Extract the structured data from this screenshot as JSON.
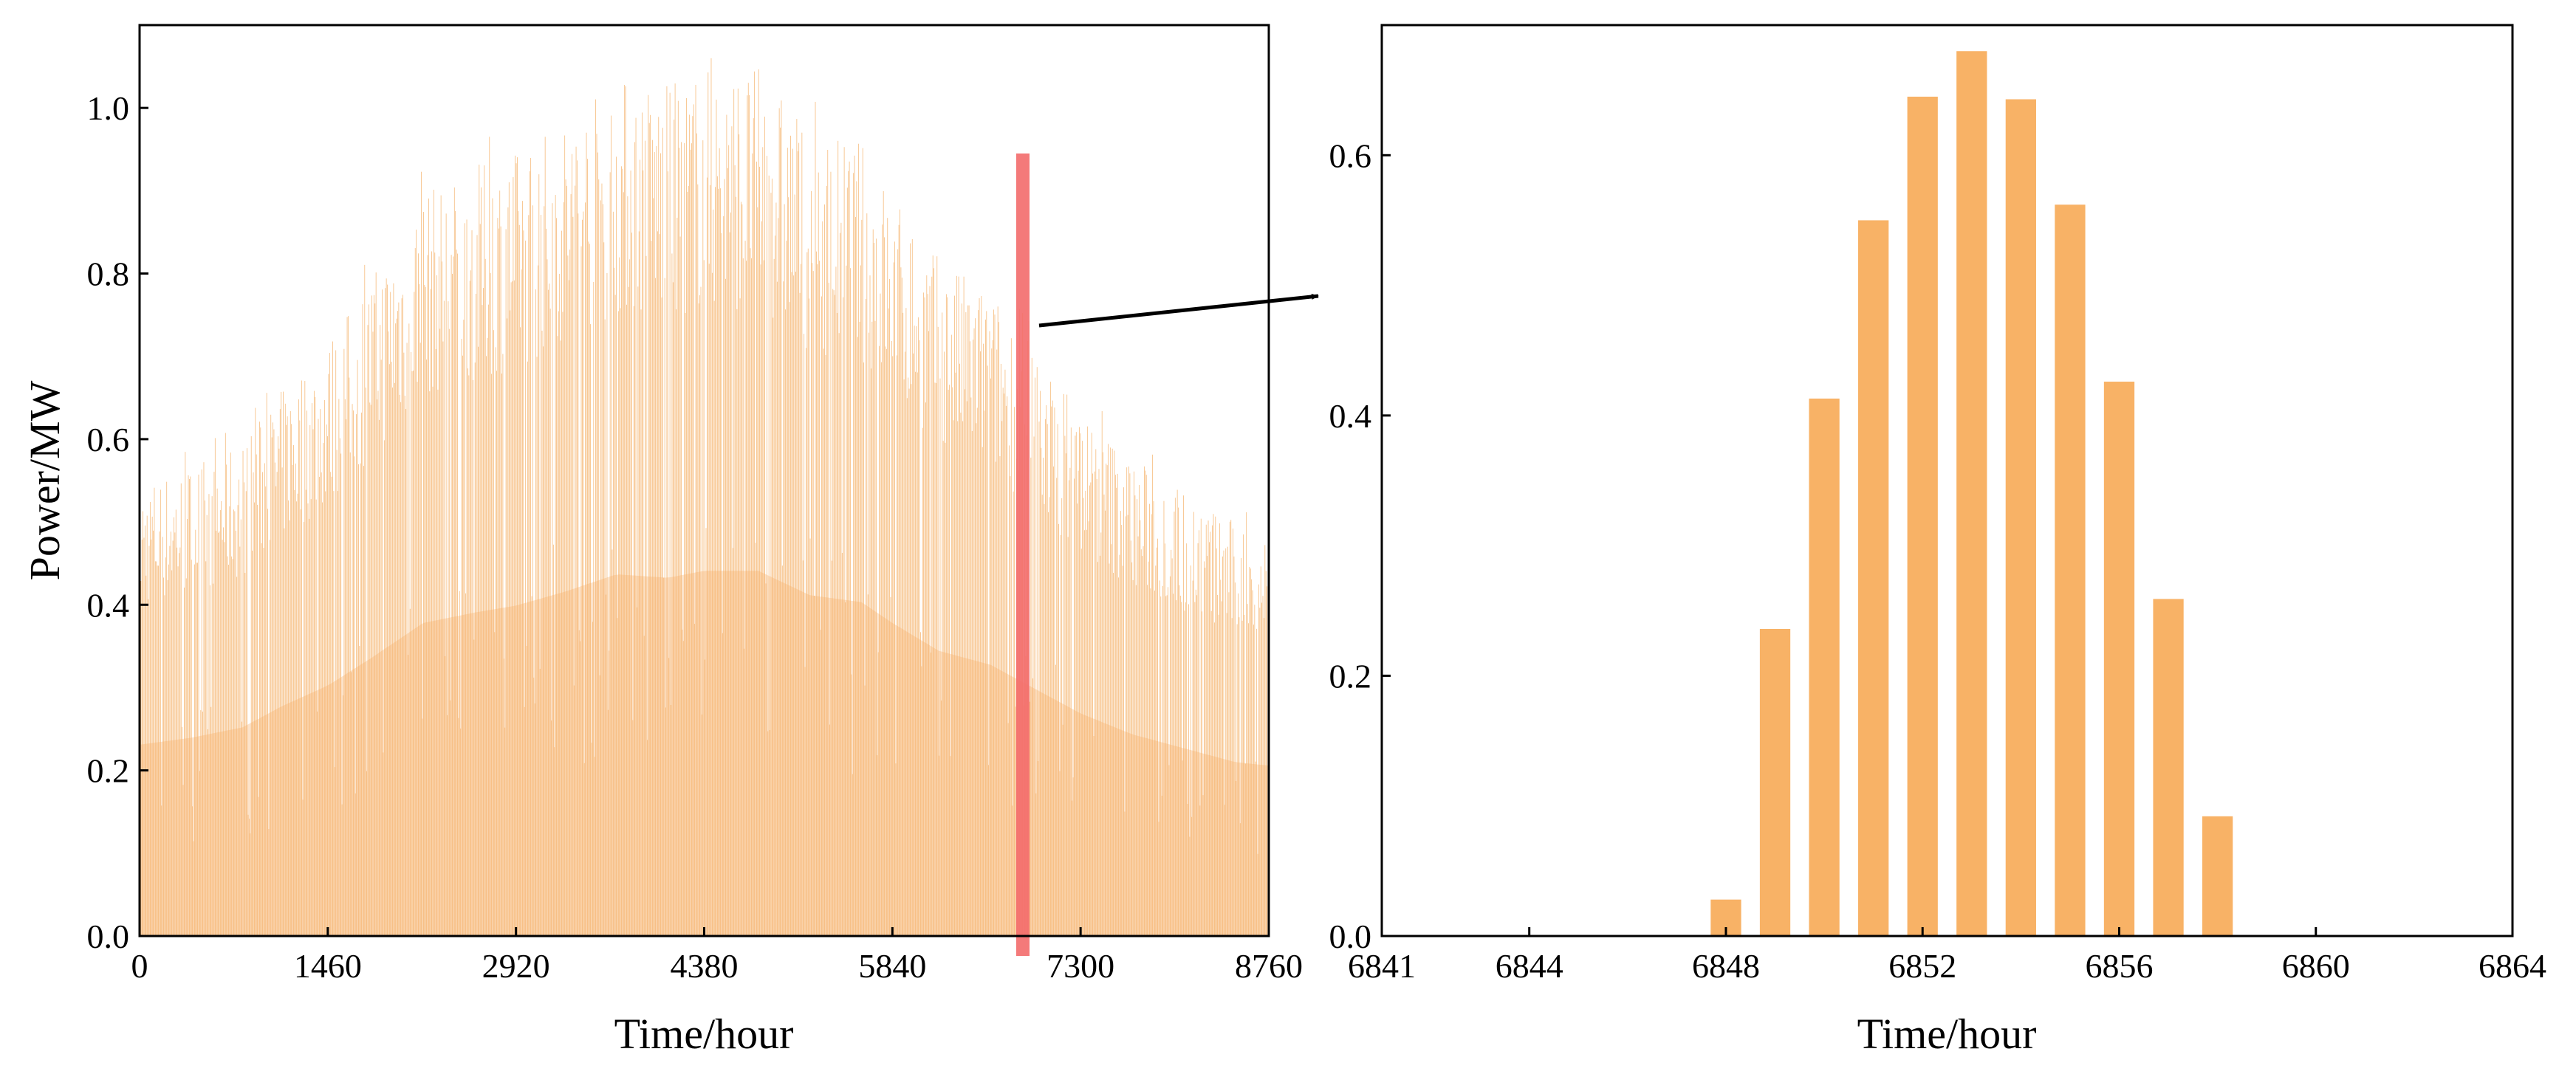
{
  "chart_data": [
    {
      "type": "bar",
      "xlabel": "Time/hour",
      "ylabel": "Power/MW",
      "xlim": [
        0,
        8760
      ],
      "ylim": [
        0,
        1.1
      ],
      "xticks": [
        0,
        1460,
        2920,
        4380,
        5840,
        7300,
        8760
      ],
      "yticks": [
        "0.0",
        "0.2",
        "0.4",
        "0.6",
        "0.8",
        "1.0"
      ],
      "grid": false,
      "bar_color": "#f5b066",
      "envelope": {
        "x": [
          0,
          400,
          800,
          1100,
          1460,
          1800,
          2200,
          2600,
          2920,
          3300,
          3700,
          4100,
          4380,
          4800,
          5200,
          5600,
          5840,
          6200,
          6600,
          6850,
          7300,
          7700,
          8100,
          8500,
          8760
        ],
        "peak": [
          0.55,
          0.57,
          0.6,
          0.66,
          0.72,
          0.8,
          0.9,
          0.93,
          0.95,
          0.99,
          1.04,
          1.03,
          1.05,
          1.05,
          0.98,
          0.96,
          0.9,
          0.82,
          0.78,
          0.73,
          0.64,
          0.58,
          0.54,
          0.5,
          0.49
        ]
      },
      "highlight": {
        "x": 6852,
        "ymin": 0,
        "ymax": 0.945,
        "color": "#f36b6b"
      }
    },
    {
      "type": "bar",
      "xlabel": "Time/hour",
      "ylabel": "",
      "xlim": [
        6841,
        6864
      ],
      "ylim": [
        0,
        0.7
      ],
      "xticks": [
        6841,
        6844,
        6848,
        6852,
        6856,
        6860,
        6864
      ],
      "yticks": [
        "0.0",
        "0.2",
        "0.4",
        "0.6"
      ],
      "grid": false,
      "bar_color": "#f8b266",
      "x": [
        6848,
        6849,
        6850,
        6851,
        6852,
        6853,
        6854,
        6855,
        6856,
        6857,
        6858
      ],
      "values": [
        0.028,
        0.236,
        0.413,
        0.55,
        0.645,
        0.68,
        0.643,
        0.562,
        0.426,
        0.259,
        0.092
      ]
    }
  ],
  "annotation": {
    "type": "arrow",
    "color": "#000000"
  }
}
